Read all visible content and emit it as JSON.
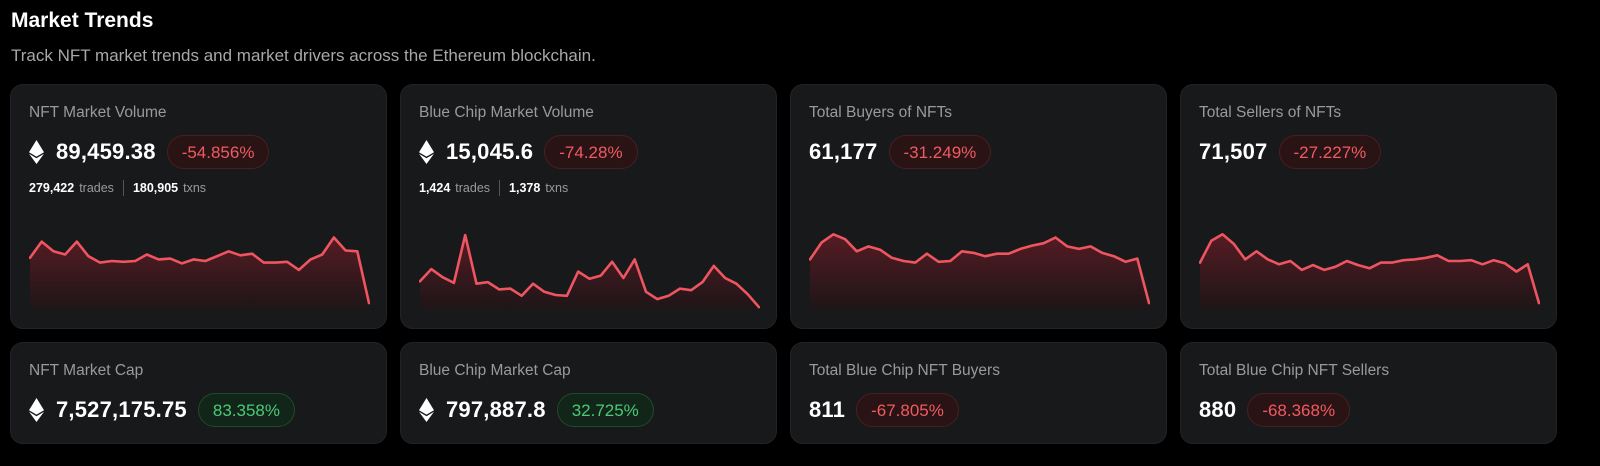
{
  "header": {
    "title": "Market Trends",
    "subtitle": "Track NFT market trends and market drivers across the Ethereum blockchain."
  },
  "colors": {
    "negative": "#ef5b61",
    "positive": "#4cc878",
    "spark_line": "#ee5560"
  },
  "cards": [
    {
      "label": "NFT Market Volume",
      "eth": true,
      "value": "89,459.38",
      "change": "-54.856%",
      "trend": "negative",
      "stats": [
        {
          "num": "279,422",
          "label": "trades"
        },
        {
          "num": "180,905",
          "label": "txns"
        }
      ],
      "spark": [
        0.62,
        0.82,
        0.7,
        0.66,
        0.82,
        0.64,
        0.56,
        0.58,
        0.57,
        0.58,
        0.66,
        0.6,
        0.61,
        0.55,
        0.6,
        0.58,
        0.64,
        0.7,
        0.65,
        0.67,
        0.56,
        0.56,
        0.57,
        0.47,
        0.6,
        0.66,
        0.87,
        0.71,
        0.7,
        0.06
      ]
    },
    {
      "label": "Blue Chip Market Volume",
      "eth": true,
      "value": "15,045.6",
      "change": "-74.28%",
      "trend": "negative",
      "stats": [
        {
          "num": "1,424",
          "label": "trades"
        },
        {
          "num": "1,378",
          "label": "txns"
        }
      ],
      "spark": [
        0.33,
        0.48,
        0.38,
        0.31,
        0.9,
        0.3,
        0.32,
        0.23,
        0.24,
        0.15,
        0.3,
        0.2,
        0.16,
        0.15,
        0.45,
        0.36,
        0.4,
        0.57,
        0.37,
        0.6,
        0.2,
        0.11,
        0.15,
        0.24,
        0.22,
        0.32,
        0.52,
        0.37,
        0.3,
        0.17,
        0.01
      ]
    },
    {
      "label": "Total Buyers of NFTs",
      "eth": false,
      "value": "61,177",
      "change": "-31.249%",
      "trend": "negative",
      "stats": [],
      "spark": [
        0.6,
        0.81,
        0.91,
        0.85,
        0.7,
        0.76,
        0.72,
        0.62,
        0.58,
        0.56,
        0.67,
        0.57,
        0.58,
        0.7,
        0.68,
        0.64,
        0.67,
        0.67,
        0.73,
        0.77,
        0.8,
        0.87,
        0.76,
        0.73,
        0.76,
        0.68,
        0.64,
        0.57,
        0.61,
        0.06
      ]
    },
    {
      "label": "Total Sellers of NFTs",
      "eth": false,
      "value": "71,507",
      "change": "-27.227%",
      "trend": "negative",
      "stats": [],
      "spark": [
        0.56,
        0.83,
        0.91,
        0.79,
        0.6,
        0.7,
        0.6,
        0.54,
        0.58,
        0.47,
        0.53,
        0.47,
        0.51,
        0.58,
        0.53,
        0.49,
        0.56,
        0.56,
        0.59,
        0.6,
        0.62,
        0.65,
        0.58,
        0.58,
        0.59,
        0.54,
        0.59,
        0.55,
        0.45,
        0.54,
        0.06
      ]
    },
    {
      "label": "NFT Market Cap",
      "eth": true,
      "value": "7,527,175.75",
      "change": "83.358%",
      "trend": "positive",
      "stats": []
    },
    {
      "label": "Blue Chip Market Cap",
      "eth": true,
      "value": "797,887.8",
      "change": "32.725%",
      "trend": "positive",
      "stats": []
    },
    {
      "label": "Total Blue Chip NFT Buyers",
      "eth": false,
      "value": "811",
      "change": "-67.805%",
      "trend": "negative",
      "stats": []
    },
    {
      "label": "Total Blue Chip NFT Sellers",
      "eth": false,
      "value": "880",
      "change": "-68.368%",
      "trend": "negative",
      "stats": []
    }
  ]
}
